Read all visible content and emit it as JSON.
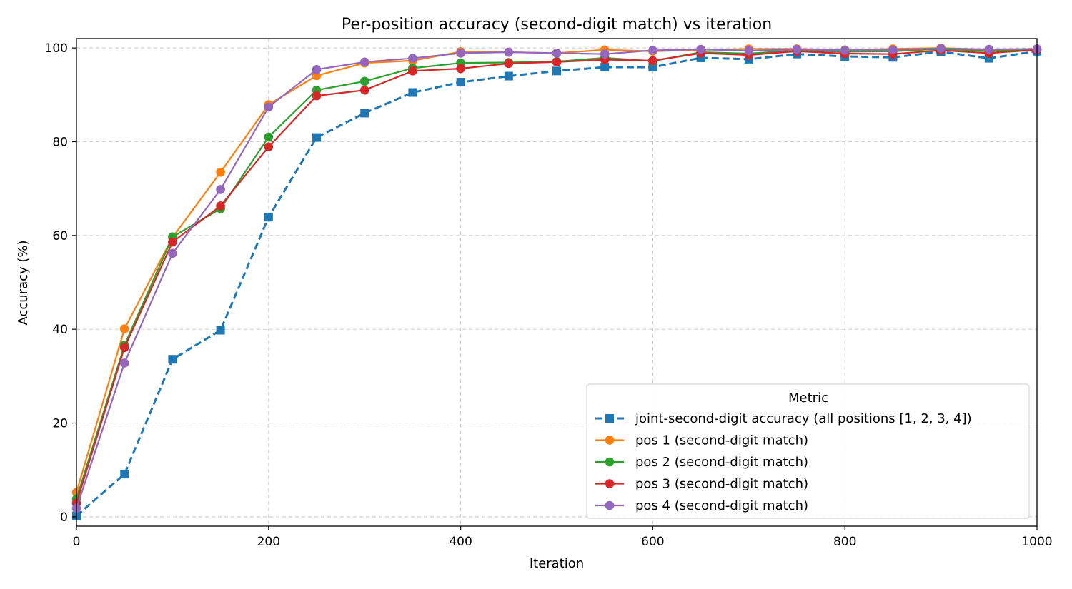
{
  "chart_data": {
    "type": "line",
    "title": "Per-position accuracy (second-digit match) vs iteration",
    "xlabel": "Iteration",
    "ylabel": "Accuracy (%)",
    "xlim": [
      0,
      1000
    ],
    "ylim": [
      -2,
      102
    ],
    "xticks": [
      0,
      200,
      400,
      600,
      800,
      1000
    ],
    "yticks": [
      0,
      20,
      40,
      60,
      80,
      100
    ],
    "grid": true,
    "legend_title": "Metric",
    "legend_position": "lower-right",
    "x": [
      0,
      50,
      100,
      150,
      200,
      250,
      300,
      350,
      400,
      450,
      500,
      550,
      600,
      650,
      700,
      750,
      800,
      850,
      900,
      950,
      1000
    ],
    "series": [
      {
        "name": "joint-second-digit accuracy (all positions [1, 2, 3, 4])",
        "color": "#1f77b4",
        "style": "dashed",
        "marker": "square",
        "values": [
          0.2,
          9.1,
          33.6,
          39.8,
          63.9,
          80.9,
          86.1,
          90.5,
          92.7,
          94.0,
          95.1,
          95.9,
          95.9,
          97.9,
          97.6,
          98.7,
          98.2,
          98.0,
          99.2,
          97.8,
          99.3
        ]
      },
      {
        "name": "pos 1 (second-digit match)",
        "color": "#ff7f0e",
        "style": "solid",
        "marker": "circle",
        "values": [
          5.2,
          40.1,
          59.6,
          73.5,
          87.9,
          94.1,
          96.8,
          97.3,
          99.2,
          99.1,
          98.9,
          99.6,
          99.3,
          99.6,
          99.8,
          99.8,
          99.6,
          99.8,
          100.0,
          99.6,
          99.8
        ]
      },
      {
        "name": "pos 2 (second-digit match)",
        "color": "#2ca02c",
        "style": "solid",
        "marker": "circle",
        "values": [
          3.8,
          36.6,
          59.7,
          65.7,
          81.0,
          91.0,
          92.9,
          95.7,
          96.8,
          96.9,
          97.1,
          97.9,
          97.2,
          99.1,
          98.8,
          99.5,
          99.2,
          99.3,
          99.8,
          99.3,
          99.6
        ]
      },
      {
        "name": "pos 3 (second-digit match)",
        "color": "#d62728",
        "style": "solid",
        "marker": "circle",
        "values": [
          2.9,
          36.1,
          58.6,
          66.3,
          78.9,
          89.8,
          91.0,
          95.1,
          95.6,
          96.7,
          97.0,
          97.5,
          97.3,
          98.9,
          98.5,
          99.3,
          98.8,
          98.7,
          99.5,
          98.9,
          99.6
        ]
      },
      {
        "name": "pos 4 (second-digit match)",
        "color": "#9467bd",
        "style": "solid",
        "marker": "circle",
        "values": [
          1.8,
          32.8,
          56.2,
          69.8,
          87.4,
          95.4,
          97.0,
          97.8,
          98.9,
          99.1,
          98.9,
          98.7,
          99.5,
          99.7,
          99.4,
          99.7,
          99.5,
          99.6,
          99.9,
          99.7,
          99.8
        ]
      }
    ]
  }
}
